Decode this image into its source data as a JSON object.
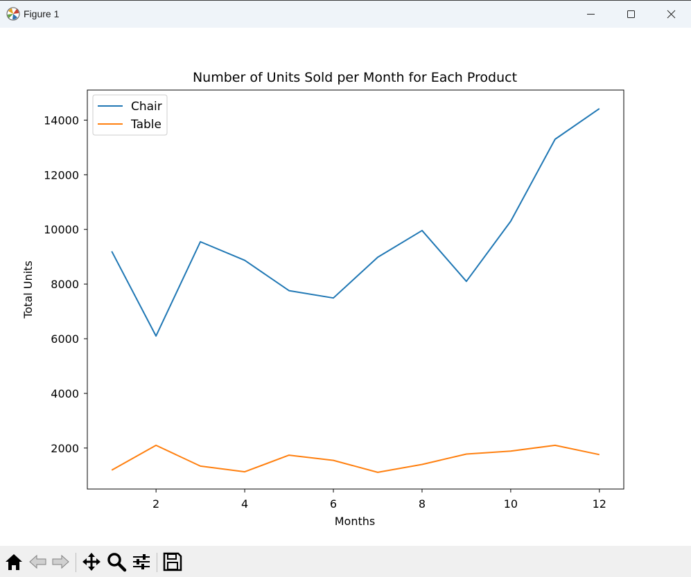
{
  "window": {
    "title": "Figure 1",
    "icon": "matplotlib-icon",
    "buttons": [
      "minimize-icon",
      "maximize-icon",
      "close-icon"
    ]
  },
  "toolbar": {
    "icons": [
      "home-icon",
      "back-arrow-icon",
      "forward-arrow-icon",
      "pan-move-icon",
      "zoom-magnifier-icon",
      "configure-subplots-icon",
      "save-icon"
    ]
  },
  "chart_data": {
    "type": "line",
    "title": "Number of Units Sold per Month for Each Product",
    "xlabel": "Months",
    "ylabel": "Total Units",
    "x": [
      1,
      2,
      3,
      4,
      5,
      6,
      7,
      8,
      9,
      10,
      11,
      12
    ],
    "series": [
      {
        "name": "Chair",
        "color": "#1f77b4",
        "values": [
          9200,
          6100,
          9550,
          8870,
          7760,
          7490,
          8980,
          9960,
          8100,
          10300,
          13300,
          14420
        ]
      },
      {
        "name": "Table",
        "color": "#ff7f0e",
        "values": [
          1190,
          2100,
          1340,
          1130,
          1740,
          1550,
          1110,
          1400,
          1780,
          1890,
          2100,
          1760
        ]
      }
    ],
    "xlim": [
      0.45,
      12.55
    ],
    "ylim": [
      500,
      15100
    ],
    "xticks": [
      2,
      4,
      6,
      8,
      10,
      12
    ],
    "yticks": [
      2000,
      4000,
      6000,
      8000,
      10000,
      12000,
      14000
    ],
    "grid": false,
    "legend": "upper left"
  }
}
